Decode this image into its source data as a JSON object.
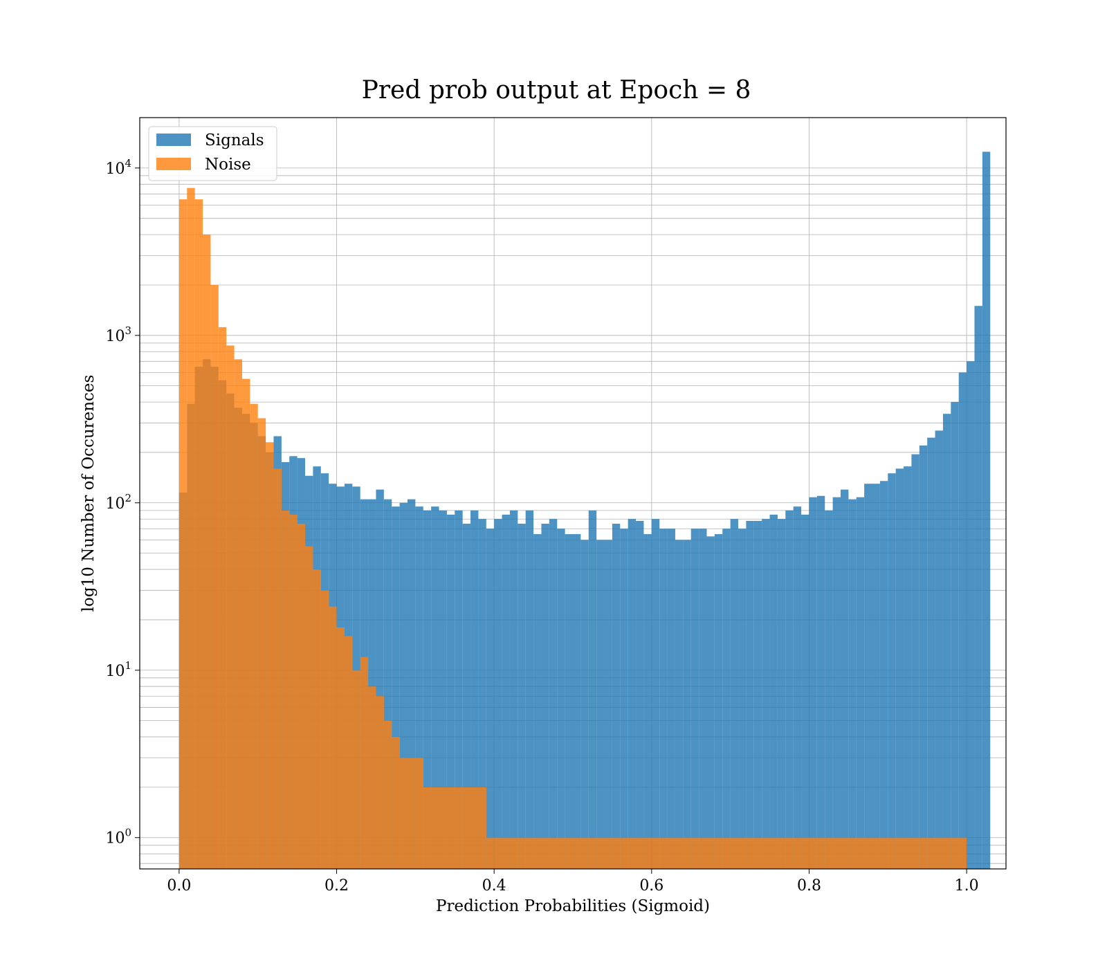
{
  "chart_data": {
    "type": "bar",
    "title": "Pred prob output at Epoch = 8",
    "xlabel": "Prediction Probabilities (Sigmoid)",
    "ylabel": "log10 Number of Occurences",
    "y_scale": "log",
    "xlim": [
      -0.05,
      1.05
    ],
    "ylim": [
      0.65,
      20000
    ],
    "x_ticks": [
      0.0,
      0.2,
      0.4,
      0.6,
      0.8,
      1.0
    ],
    "x_tick_labels": [
      "0.0",
      "0.2",
      "0.4",
      "0.6",
      "0.8",
      "1.0"
    ],
    "y_ticks": [
      1,
      10,
      100,
      1000,
      10000
    ],
    "y_tick_labels": [
      {
        "base": "10",
        "exp": "0"
      },
      {
        "base": "10",
        "exp": "1"
      },
      {
        "base": "10",
        "exp": "2"
      },
      {
        "base": "10",
        "exp": "3"
      },
      {
        "base": "10",
        "exp": "4"
      }
    ],
    "grid": true,
    "legend_position": "top-left",
    "bin_width": 0.01,
    "series": [
      {
        "name": "Signals",
        "color": "#1f77b4",
        "opacity": 0.8,
        "bin_start": 0.0,
        "values": [
          115,
          390,
          650,
          720,
          650,
          540,
          450,
          370,
          340,
          300,
          250,
          200,
          250,
          175,
          190,
          185,
          145,
          165,
          150,
          130,
          125,
          130,
          125,
          105,
          105,
          120,
          105,
          95,
          100,
          105,
          95,
          90,
          95,
          90,
          85,
          90,
          75,
          90,
          80,
          70,
          80,
          85,
          90,
          75,
          90,
          65,
          75,
          80,
          70,
          65,
          65,
          60,
          90,
          60,
          60,
          75,
          70,
          80,
          78,
          65,
          80,
          70,
          70,
          60,
          60,
          70,
          70,
          63,
          65,
          70,
          80,
          70,
          78,
          78,
          80,
          85,
          80,
          90,
          95,
          85,
          108,
          110,
          90,
          108,
          120,
          105,
          108,
          130,
          130,
          135,
          150,
          160,
          165,
          195,
          220,
          245,
          270,
          340,
          400,
          600,
          700,
          1500,
          12500
        ]
      },
      {
        "name": "Noise",
        "color": "#ff7f0e",
        "opacity": 0.8,
        "bin_start": 0.0,
        "values": [
          6500,
          7600,
          6500,
          4000,
          2000,
          1120,
          870,
          720,
          550,
          390,
          320,
          230,
          160,
          90,
          85,
          75,
          55,
          40,
          30,
          24,
          18,
          16,
          10,
          12,
          8,
          7,
          5,
          4,
          3,
          3,
          3,
          2,
          2,
          2,
          2,
          2,
          2,
          2,
          2,
          1,
          1,
          1,
          1,
          1,
          1,
          1,
          1,
          1,
          1,
          1,
          1,
          1,
          1,
          1,
          1,
          1,
          1,
          1,
          1,
          1,
          1,
          1,
          1,
          1,
          1,
          1,
          1,
          1,
          1,
          1,
          1,
          1,
          1,
          1,
          1,
          1,
          1,
          1,
          1,
          1,
          1,
          1,
          1,
          1,
          1,
          1,
          1,
          1,
          1,
          1,
          1,
          1,
          1,
          1,
          1,
          1,
          1,
          1,
          1,
          1
        ]
      }
    ]
  }
}
